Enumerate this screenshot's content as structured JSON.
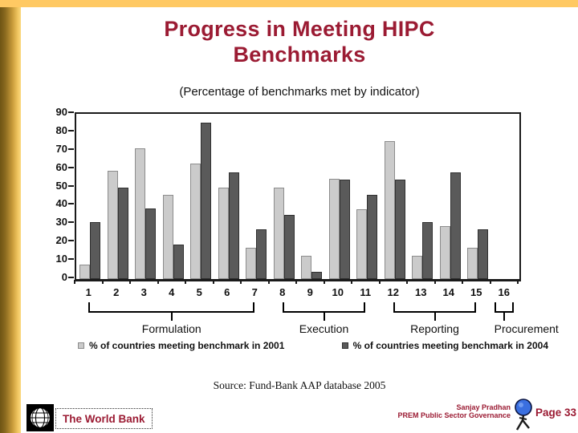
{
  "slide": {
    "title": "Progress in Meeting HIPC Benchmarks",
    "subtitle": "(Percentage of benchmarks met by indicator)",
    "source": "Source: Fund-Bank AAP database 2005"
  },
  "chart_data": {
    "type": "bar",
    "title": "Progress in Meeting HIPC Benchmarks",
    "subtitle": "(Percentage of benchmarks met by indicator)",
    "categories": [
      "1",
      "2",
      "3",
      "4",
      "5",
      "6",
      "7",
      "8",
      "9",
      "10",
      "11",
      "12",
      "13",
      "14",
      "15",
      "16"
    ],
    "series": [
      {
        "name": "% of countries meeting benchmark in 2001",
        "color": "#CBCBCB",
        "border": "#8c8c8c",
        "values": [
          8,
          59,
          71,
          46,
          63,
          50,
          17,
          50,
          12.5,
          54.5,
          38,
          75,
          12.5,
          29,
          17,
          0
        ]
      },
      {
        "name": "% of countries meeting benchmark in 2004",
        "color": "#5A5A5A",
        "border": "#303030",
        "values": [
          31,
          50,
          38.5,
          19,
          85,
          58,
          27,
          35,
          4,
          54,
          46,
          54,
          31,
          58,
          27,
          0
        ]
      }
    ],
    "ylim": [
      0,
      90
    ],
    "ytick_step": 10,
    "grid": false,
    "legend_position": "bottom",
    "category_groups": [
      {
        "label": "Formulation",
        "from": 1,
        "to": 7
      },
      {
        "label": "Execution",
        "from": 8,
        "to": 11
      },
      {
        "label": "Reporting",
        "from": 12,
        "to": 15
      },
      {
        "label": "Procurement",
        "from": 16,
        "to": 16
      }
    ]
  },
  "footer": {
    "world_bank_label": "The World Bank",
    "author_line1": "Sanjay Pradhan",
    "author_line2": "PREM Public Sector Governance",
    "page_label": "Page 33"
  },
  "icons": {
    "world_bank_logo": "globe-grid-icon",
    "prem_figure": "person-holding-globe-icon"
  },
  "colors": {
    "title_text": "#9B1B33",
    "accent_gold_top": "#FFC963",
    "accent_gold_left_dark": "#6E5414",
    "accent_gold_left_light": "#FBD97F",
    "bar_2001": "#CBCBCB",
    "bar_2004": "#5A5A5A"
  }
}
